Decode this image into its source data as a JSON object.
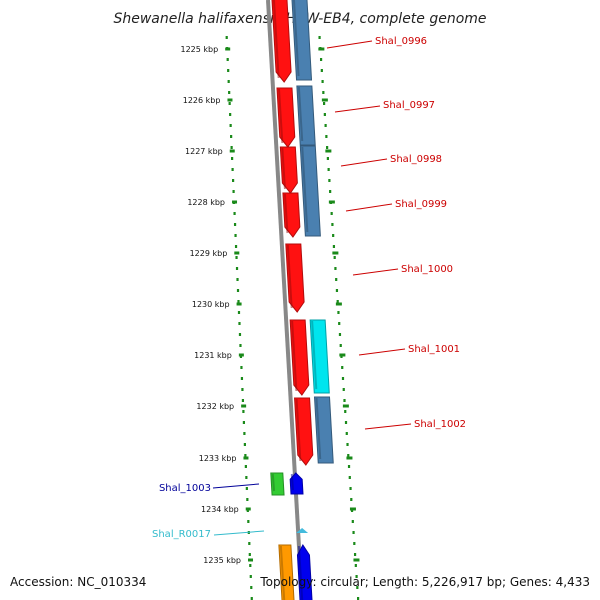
{
  "title": "Shewanella halifaxensis HAW-EB4, complete genome",
  "accession": "Accession: NC_010334",
  "summary": "Topology: circular; Length: 5,226,917 bp; Genes: 4,433",
  "ticks": [
    "1225 kbp",
    "1226 kbp",
    "1227 kbp",
    "1228 kbp",
    "1229 kbp",
    "1230 kbp",
    "1231 kbp",
    "1232 kbp",
    "1233 kbp",
    "1234 kbp",
    "1235 kbp"
  ],
  "genes": [
    {
      "label": "Shal_0996",
      "color": "#cc0000"
    },
    {
      "label": "Shal_0997",
      "color": "#cc0000"
    },
    {
      "label": "Shal_0998",
      "color": "#cc0000"
    },
    {
      "label": "Shal_0999",
      "color": "#cc0000"
    },
    {
      "label": "Shal_1000",
      "color": "#cc0000"
    },
    {
      "label": "Shal_1001",
      "color": "#cc0000"
    },
    {
      "label": "Shal_1002",
      "color": "#cc0000"
    },
    {
      "label": "Shal_1003",
      "color": "#000099"
    },
    {
      "label": "Shal_R0017",
      "color": "#33bbcc"
    }
  ],
  "feature_colors": {
    "cds_red": "#ff1111",
    "cds_blue": "#4a80b0",
    "cds_cyan": "#00e5ee",
    "cds_green": "#33cc33",
    "cds_deep_blue": "#0000ee",
    "cds_orange": "#ff9900",
    "trna": "#44bbdd",
    "backbone": "#888888",
    "dots": "#1a8a1a"
  }
}
